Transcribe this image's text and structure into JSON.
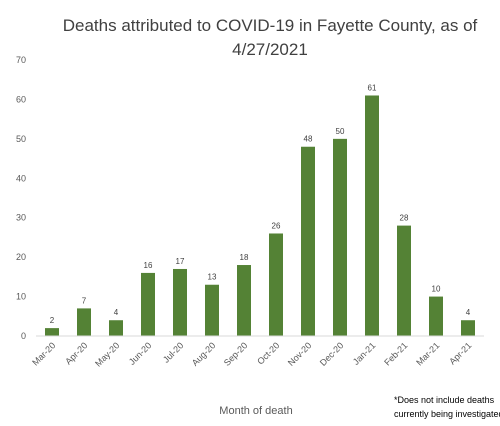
{
  "chart_data": {
    "type": "bar",
    "title": "Deaths attributed to COVID-19 in Fayette County, as of 4/27/2021",
    "xlabel": "Month of death",
    "ylabel": "",
    "categories": [
      "Mar-20",
      "Apr-20",
      "May-20",
      "Jun-20",
      "Jul-20",
      "Aug-20",
      "Sep-20",
      "Oct-20",
      "Nov-20",
      "Dec-20",
      "Jan-21",
      "Feb-21",
      "Mar-21",
      "Apr-21"
    ],
    "values": [
      2,
      7,
      4,
      16,
      17,
      13,
      18,
      26,
      48,
      50,
      61,
      28,
      10,
      4
    ],
    "ylim": [
      0,
      70
    ],
    "yticks": [
      0,
      10,
      20,
      30,
      40,
      50,
      60,
      70
    ],
    "grid": false,
    "legend": "none",
    "bar_color": "#548235",
    "data_labels": true,
    "footnote": [
      "*Does not include deaths",
      "currently being investigated"
    ]
  }
}
